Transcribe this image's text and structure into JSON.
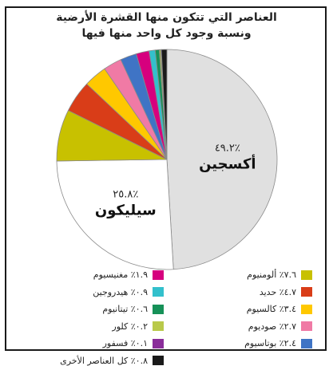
{
  "chart_data": {
    "type": "pie",
    "title_line1": "العناصر التي تتكون منها القشرة الأرضية",
    "title_line2": "ونسبة وجود كل واحد منها فيها",
    "slices": [
      {
        "name": "أكسجين",
        "value": 49.2,
        "value_label": "٤٩.٢٪",
        "color": "#e0e0e0",
        "show_label": true
      },
      {
        "name": "سيليكون",
        "value": 25.8,
        "value_label": "٢٥.٨٪",
        "color": "#ffffff",
        "show_label": true
      },
      {
        "name": "ألومنيوم",
        "value": 7.6,
        "value_label": "٧.٦٪",
        "color": "#c8c100"
      },
      {
        "name": "حديد",
        "value": 4.7,
        "value_label": "٤.٧٪",
        "color": "#d93d18"
      },
      {
        "name": "كالسيوم",
        "value": 3.4,
        "value_label": "٣.٤٪",
        "color": "#ffc800"
      },
      {
        "name": "صوديوم",
        "value": 2.7,
        "value_label": "٢.٧٪",
        "color": "#f07aa5"
      },
      {
        "name": "بوتاسيوم",
        "value": 2.4,
        "value_label": "٢.٤٪",
        "color": "#3f74c5"
      },
      {
        "name": "مغنيسيوم",
        "value": 1.9,
        "value_label": "١.٩٪",
        "color": "#d6007e"
      },
      {
        "name": "هيدروجين",
        "value": 0.9,
        "value_label": "٠.٩٪",
        "color": "#33c0cc"
      },
      {
        "name": "تيتانيوم",
        "value": 0.6,
        "value_label": "٠.٦٪",
        "color": "#169158"
      },
      {
        "name": "كلور",
        "value": 0.2,
        "value_label": "٠.٢٪",
        "color": "#b9c94a"
      },
      {
        "name": "فسفور",
        "value": 0.1,
        "value_label": "٠.١٪",
        "color": "#8a2d9a"
      },
      {
        "name": "كل العناصر الأخرى",
        "value": 0.8,
        "value_label": "٠.٨٪",
        "color": "#1a1a1a"
      }
    ]
  }
}
